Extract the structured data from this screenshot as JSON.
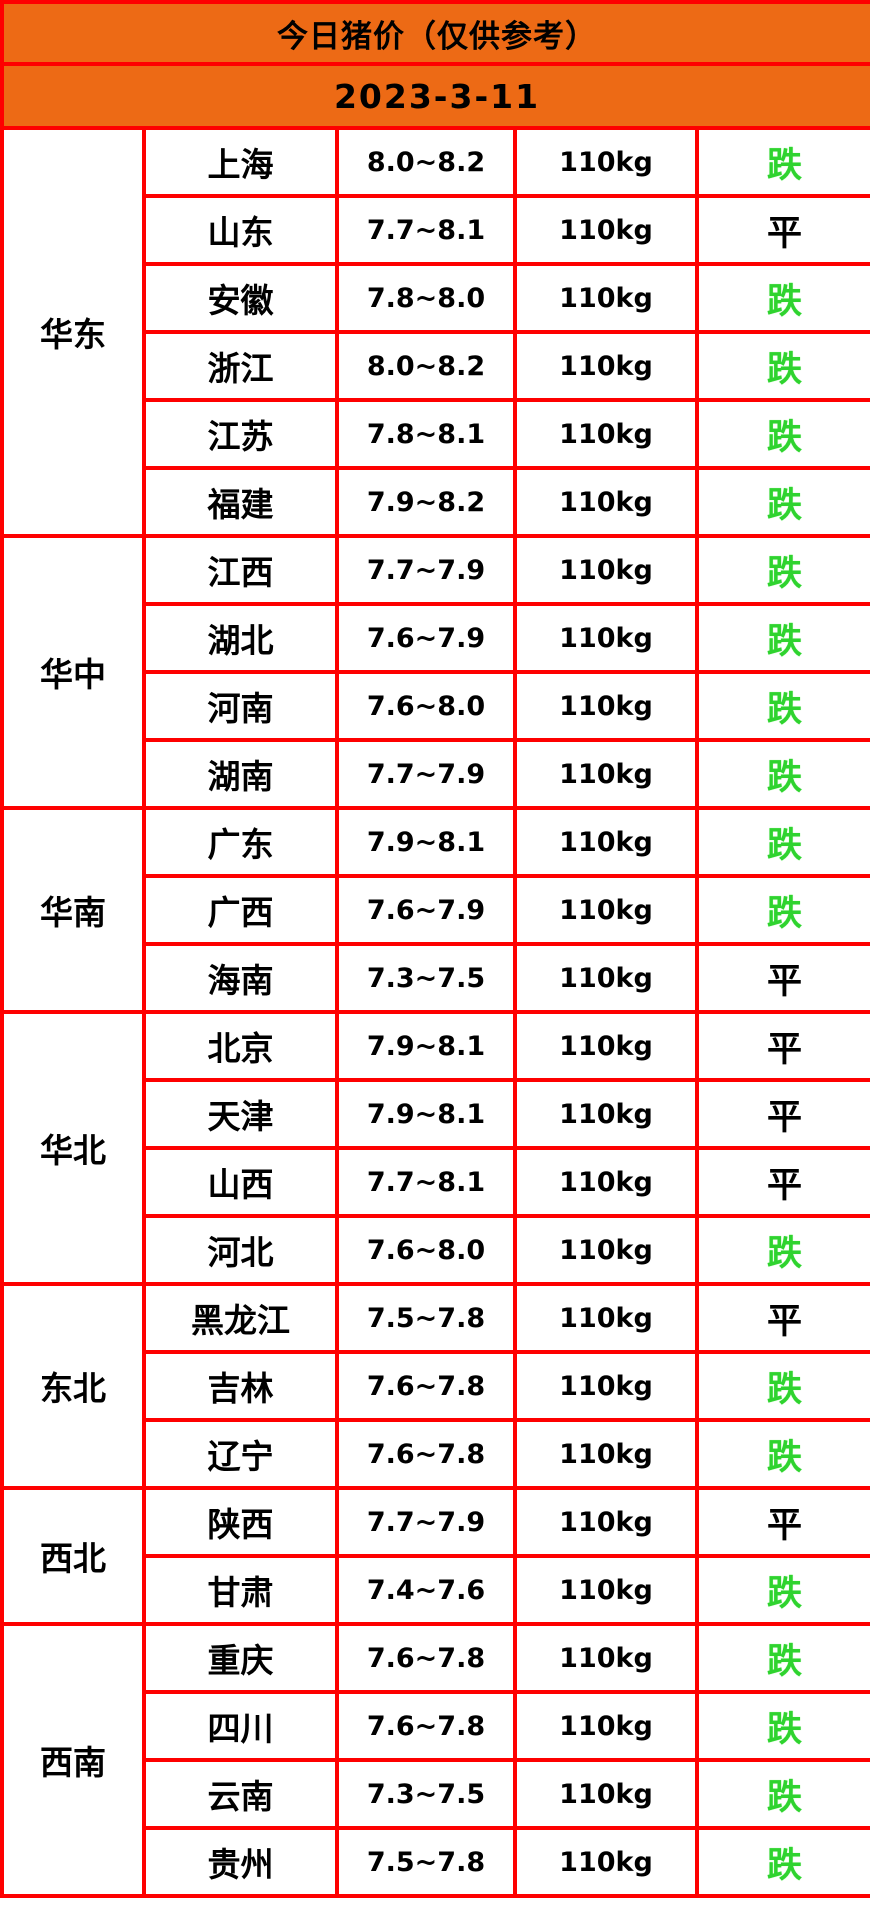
{
  "page": {
    "title": "今日猪价（仅供参考）",
    "date": "2023-3-11"
  },
  "colors": {
    "header_orange": "#ed6a15",
    "border_red": "#fe0000",
    "trend_down_green": "#2fd32f",
    "trend_flat_black": "#000000",
    "text_black": "#000000",
    "cell_white": "#ffffff"
  },
  "chart_data": {
    "type": "table",
    "title": "今日猪价（仅供参考）",
    "subtitle": "2023-3-11",
    "weight_constant": "110kg",
    "regions": [
      {
        "region": "华东",
        "rows": [
          {
            "province": "上海",
            "price_range": "8.0~8.2",
            "weight": "110kg",
            "trend": "跌",
            "trend_type": "down"
          },
          {
            "province": "山东",
            "price_range": "7.7~8.1",
            "weight": "110kg",
            "trend": "平",
            "trend_type": "flat"
          },
          {
            "province": "安徽",
            "price_range": "7.8~8.0",
            "weight": "110kg",
            "trend": "跌",
            "trend_type": "down"
          },
          {
            "province": "浙江",
            "price_range": "8.0~8.2",
            "weight": "110kg",
            "trend": "跌",
            "trend_type": "down"
          },
          {
            "province": "江苏",
            "price_range": "7.8~8.1",
            "weight": "110kg",
            "trend": "跌",
            "trend_type": "down"
          },
          {
            "province": "福建",
            "price_range": "7.9~8.2",
            "weight": "110kg",
            "trend": "跌",
            "trend_type": "down"
          }
        ]
      },
      {
        "region": "华中",
        "rows": [
          {
            "province": "江西",
            "price_range": "7.7~7.9",
            "weight": "110kg",
            "trend": "跌",
            "trend_type": "down"
          },
          {
            "province": "湖北",
            "price_range": "7.6~7.9",
            "weight": "110kg",
            "trend": "跌",
            "trend_type": "down"
          },
          {
            "province": "河南",
            "price_range": "7.6~8.0",
            "weight": "110kg",
            "trend": "跌",
            "trend_type": "down"
          },
          {
            "province": "湖南",
            "price_range": "7.7~7.9",
            "weight": "110kg",
            "trend": "跌",
            "trend_type": "down"
          }
        ]
      },
      {
        "region": "华南",
        "rows": [
          {
            "province": "广东",
            "price_range": "7.9~8.1",
            "weight": "110kg",
            "trend": "跌",
            "trend_type": "down"
          },
          {
            "province": "广西",
            "price_range": "7.6~7.9",
            "weight": "110kg",
            "trend": "跌",
            "trend_type": "down"
          },
          {
            "province": "海南",
            "price_range": "7.3~7.5",
            "weight": "110kg",
            "trend": "平",
            "trend_type": "flat"
          }
        ]
      },
      {
        "region": "华北",
        "rows": [
          {
            "province": "北京",
            "price_range": "7.9~8.1",
            "weight": "110kg",
            "trend": "平",
            "trend_type": "flat"
          },
          {
            "province": "天津",
            "price_range": "7.9~8.1",
            "weight": "110kg",
            "trend": "平",
            "trend_type": "flat"
          },
          {
            "province": "山西",
            "price_range": "7.7~8.1",
            "weight": "110kg",
            "trend": "平",
            "trend_type": "flat"
          },
          {
            "province": "河北",
            "price_range": "7.6~8.0",
            "weight": "110kg",
            "trend": "跌",
            "trend_type": "down"
          }
        ]
      },
      {
        "region": "东北",
        "rows": [
          {
            "province": "黑龙江",
            "price_range": "7.5~7.8",
            "weight": "110kg",
            "trend": "平",
            "trend_type": "flat"
          },
          {
            "province": "吉林",
            "price_range": "7.6~7.8",
            "weight": "110kg",
            "trend": "跌",
            "trend_type": "down"
          },
          {
            "province": "辽宁",
            "price_range": "7.6~7.8",
            "weight": "110kg",
            "trend": "跌",
            "trend_type": "down"
          }
        ]
      },
      {
        "region": "西北",
        "rows": [
          {
            "province": "陕西",
            "price_range": "7.7~7.9",
            "weight": "110kg",
            "trend": "平",
            "trend_type": "flat"
          },
          {
            "province": "甘肃",
            "price_range": "7.4~7.6",
            "weight": "110kg",
            "trend": "跌",
            "trend_type": "down"
          }
        ]
      },
      {
        "region": "西南",
        "rows": [
          {
            "province": "重庆",
            "price_range": "7.6~7.8",
            "weight": "110kg",
            "trend": "跌",
            "trend_type": "down"
          },
          {
            "province": "四川",
            "price_range": "7.6~7.8",
            "weight": "110kg",
            "trend": "跌",
            "trend_type": "down"
          },
          {
            "province": "云南",
            "price_range": "7.3~7.5",
            "weight": "110kg",
            "trend": "跌",
            "trend_type": "down"
          },
          {
            "province": "贵州",
            "price_range": "7.5~7.8",
            "weight": "110kg",
            "trend": "跌",
            "trend_type": "down"
          }
        ]
      }
    ]
  }
}
